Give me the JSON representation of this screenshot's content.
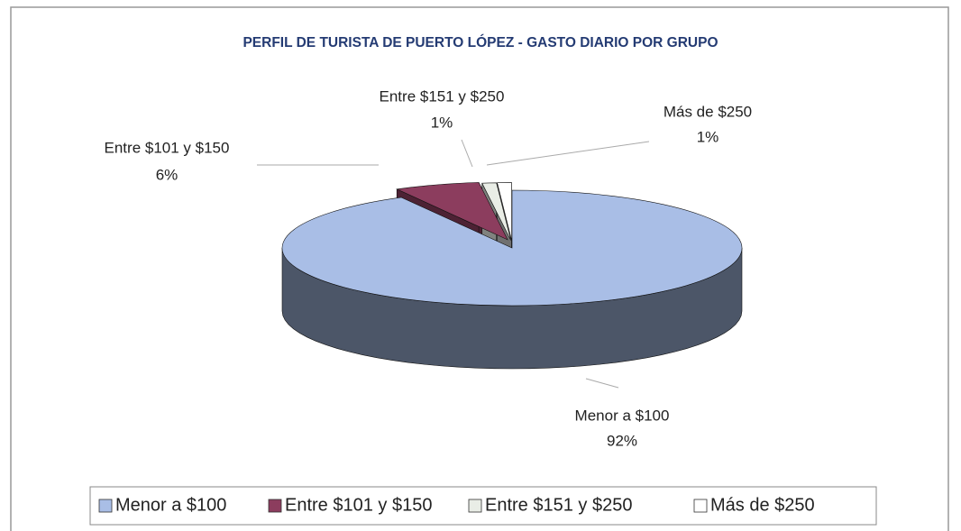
{
  "chart_data": {
    "type": "pie",
    "title": "PERFIL DE TURISTA DE PUERTO LÓPEZ - GASTO DIARIO POR GRUPO",
    "categories": [
      "Menor a $100",
      "Entre $101 y $150",
      "Entre $151 y $250",
      "Más de $250"
    ],
    "values": [
      92,
      6,
      1,
      1
    ],
    "value_labels": [
      "92%",
      "6%",
      "1%",
      "1%"
    ],
    "colors": [
      "#a9bee6",
      "#8c3d5e",
      "#e9ede6",
      "#ffffff"
    ],
    "legend": "bottom"
  }
}
